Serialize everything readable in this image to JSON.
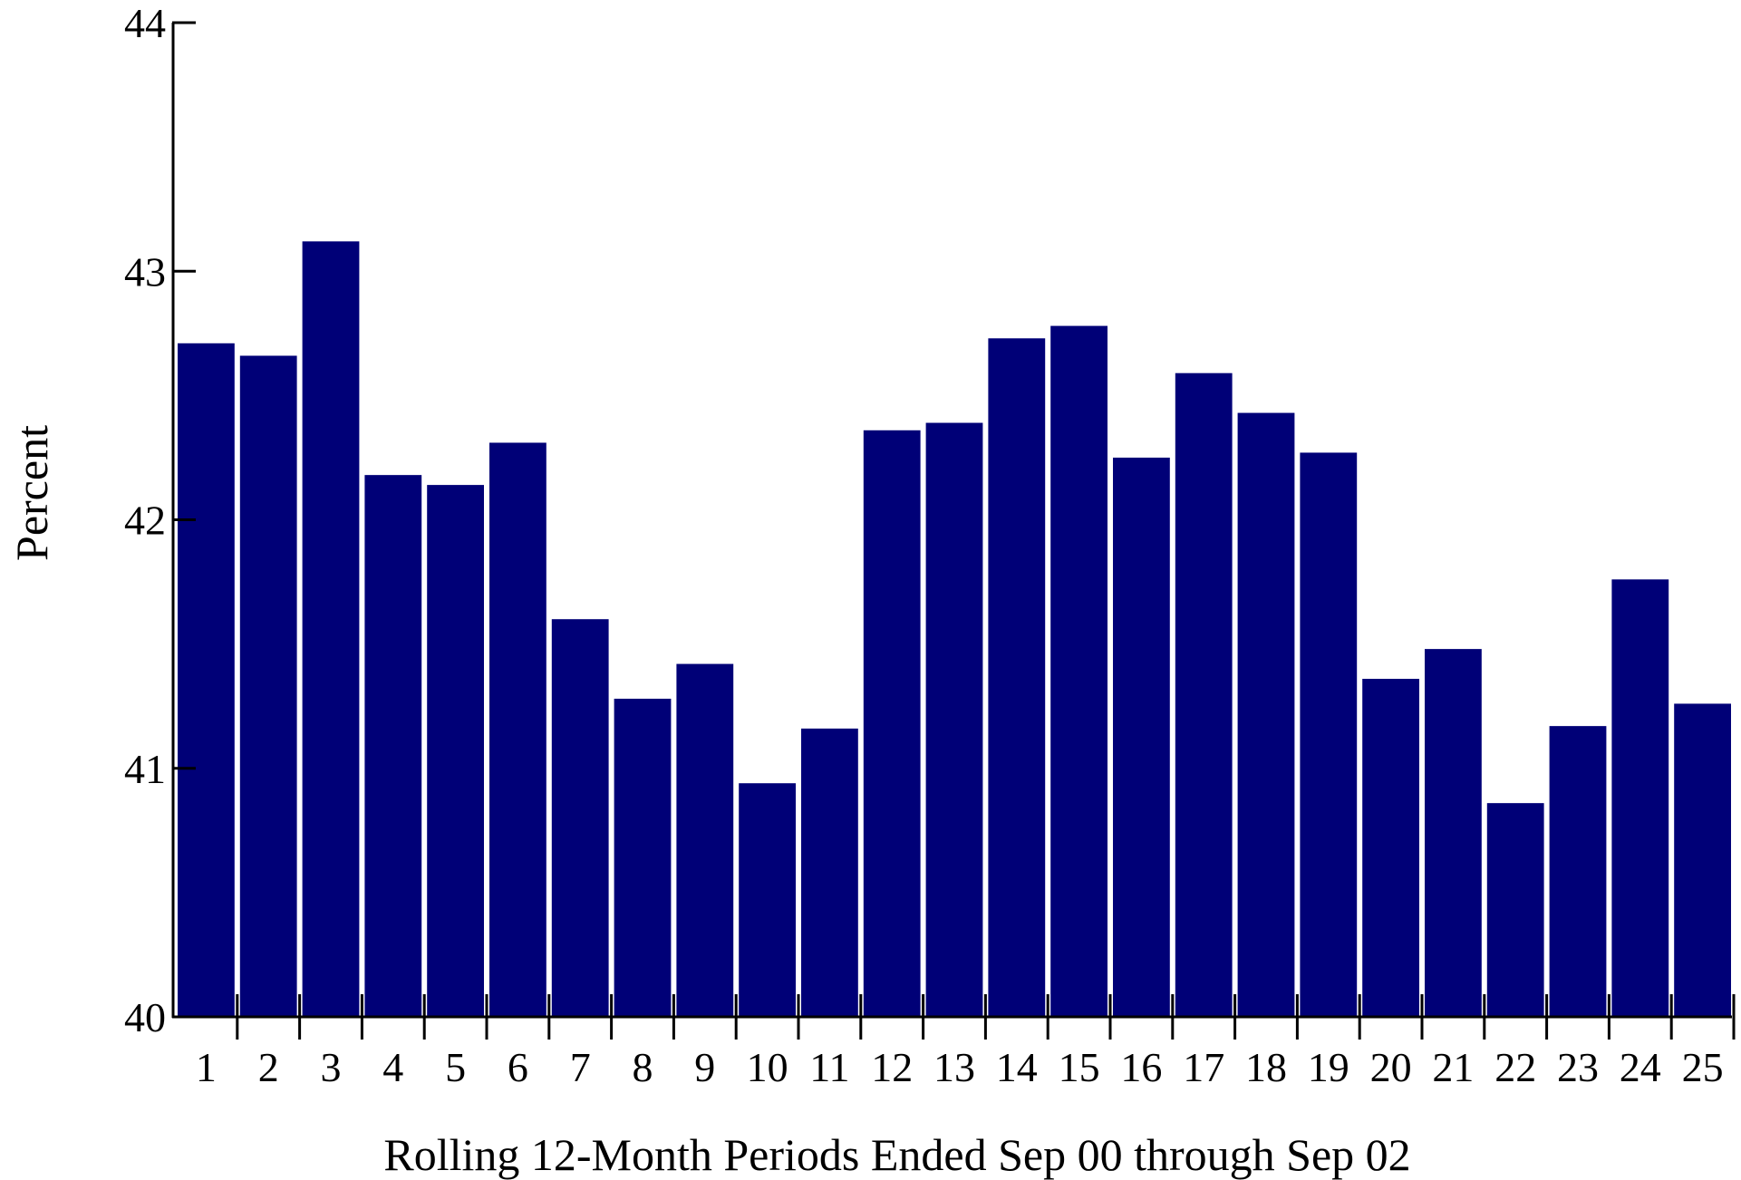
{
  "chart_data": {
    "type": "bar",
    "title": "",
    "xlabel": "Rolling 12-Month Periods Ended Sep 00 through Sep 02",
    "ylabel": "Percent",
    "ylim": [
      40,
      44
    ],
    "yticks": [
      "40",
      "41",
      "42",
      "43",
      "44"
    ],
    "categories": [
      "1",
      "2",
      "3",
      "4",
      "5",
      "6",
      "7",
      "8",
      "9",
      "10",
      "11",
      "12",
      "13",
      "14",
      "15",
      "16",
      "17",
      "18",
      "19",
      "20",
      "21",
      "22",
      "23",
      "24",
      "25"
    ],
    "values": [
      42.71,
      42.66,
      43.12,
      42.18,
      42.14,
      42.31,
      41.6,
      41.28,
      41.42,
      40.94,
      41.16,
      42.36,
      42.39,
      42.73,
      42.78,
      42.25,
      42.59,
      42.43,
      42.27,
      41.36,
      41.48,
      40.86,
      41.17,
      41.76,
      41.26
    ],
    "bar_color": "#000077",
    "grid": false,
    "legend": "none"
  }
}
